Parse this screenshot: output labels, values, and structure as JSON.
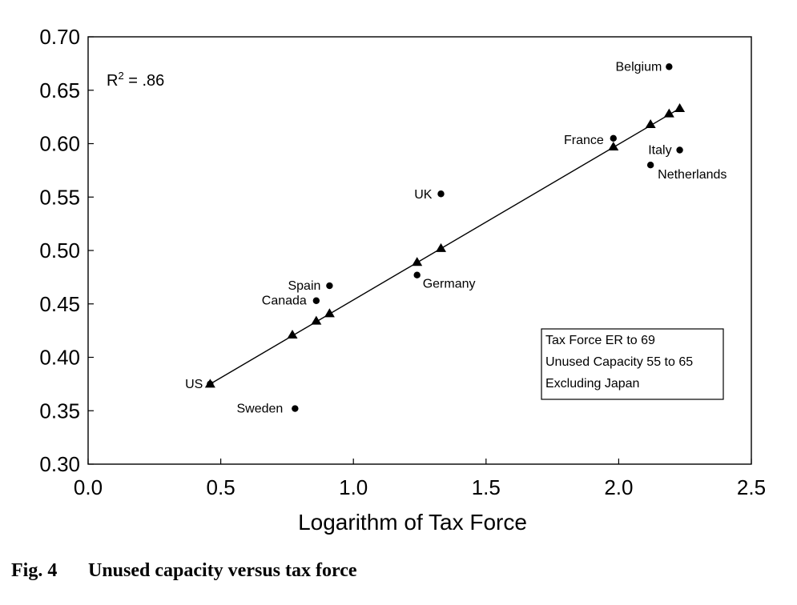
{
  "chart_data": {
    "type": "scatter",
    "xlabel": "Logarithm of Tax Force",
    "ylabel": "",
    "xlim": [
      0.0,
      2.5
    ],
    "ylim": [
      0.3,
      0.7
    ],
    "xticks": [
      "0.0",
      "0.5",
      "1.0",
      "1.5",
      "2.0",
      "2.5"
    ],
    "yticks": [
      "0.30",
      "0.35",
      "0.40",
      "0.45",
      "0.50",
      "0.55",
      "0.60",
      "0.65",
      "0.70"
    ],
    "grid": false,
    "annotation": {
      "prefix": "R",
      "sup": "2",
      "suffix": " = .86"
    },
    "legend_box": [
      "Tax Force ER to 69",
      "Unused Capacity 55 to 65",
      "Excluding Japan"
    ],
    "series": [
      {
        "marker": "circle",
        "points": [
          {
            "label": "US",
            "x": 0.46,
            "y": 0.375
          },
          {
            "label": "Sweden",
            "x": 0.78,
            "y": 0.352
          },
          {
            "label": "Canada",
            "x": 0.86,
            "y": 0.453
          },
          {
            "label": "Spain",
            "x": 0.91,
            "y": 0.467
          },
          {
            "label": "Germany",
            "x": 1.24,
            "y": 0.477
          },
          {
            "label": "UK",
            "x": 1.33,
            "y": 0.553
          },
          {
            "label": "France",
            "x": 1.98,
            "y": 0.605
          },
          {
            "label": "Netherlands",
            "x": 2.12,
            "y": 0.58
          },
          {
            "label": "Italy",
            "x": 2.23,
            "y": 0.594
          },
          {
            "label": "Belgium",
            "x": 2.19,
            "y": 0.672
          }
        ]
      },
      {
        "marker": "triangle",
        "fit": true,
        "points": [
          {
            "x": 0.46,
            "y": 0.375
          },
          {
            "x": 0.77,
            "y": 0.421
          },
          {
            "x": 0.86,
            "y": 0.434
          },
          {
            "x": 0.91,
            "y": 0.441
          },
          {
            "x": 1.24,
            "y": 0.489
          },
          {
            "x": 1.33,
            "y": 0.502
          },
          {
            "x": 1.98,
            "y": 0.597
          },
          {
            "x": 2.12,
            "y": 0.618
          },
          {
            "x": 2.19,
            "y": 0.628
          },
          {
            "x": 2.23,
            "y": 0.633
          }
        ]
      }
    ]
  },
  "caption": {
    "figure": "Fig. 4",
    "text": "Unused capacity versus tax force"
  }
}
